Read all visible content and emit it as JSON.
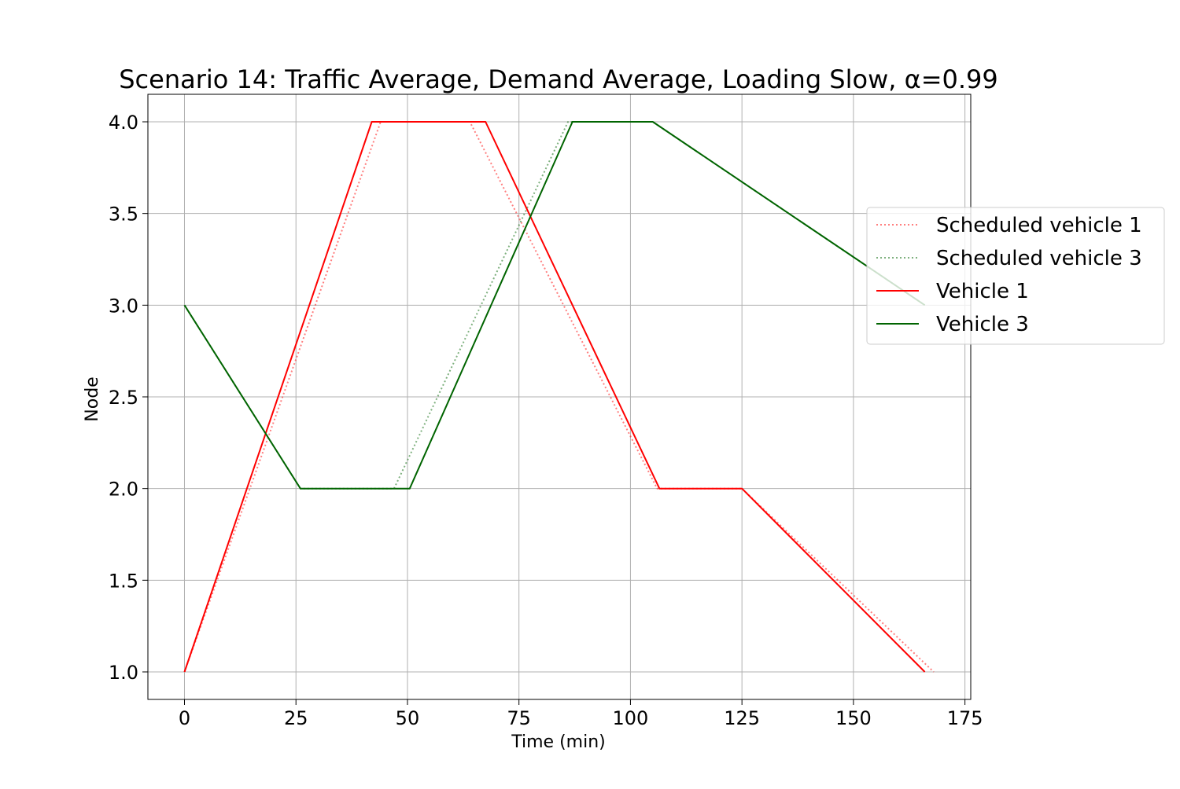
{
  "chart_data": {
    "type": "line",
    "title": "Scenario 14: Traffic Average, Demand Average, Loading Slow, α=0.99",
    "xlabel": "Time (min)",
    "ylabel": "Node",
    "xlim": [
      -8.2,
      176.3
    ],
    "ylim": [
      0.85,
      4.15
    ],
    "xticks": [
      0,
      25,
      50,
      75,
      100,
      125,
      150,
      175
    ],
    "yticks": [
      1.0,
      1.5,
      2.0,
      2.5,
      3.0,
      3.5,
      4.0
    ],
    "xtick_labels": [
      "0",
      "25",
      "50",
      "75",
      "100",
      "125",
      "150",
      "175"
    ],
    "ytick_labels": [
      "1.0",
      "1.5",
      "2.0",
      "2.5",
      "3.0",
      "3.5",
      "4.0"
    ],
    "grid": true,
    "legend_position": "right",
    "series": [
      {
        "name": "Scheduled vehicle 1",
        "color": "#ff0000",
        "style": "dotted",
        "alpha": 0.5,
        "x": [
          0,
          44,
          64,
          106,
          125,
          168
        ],
        "y": [
          1,
          4,
          4,
          2,
          2,
          1
        ]
      },
      {
        "name": "Scheduled vehicle 3",
        "color": "#006400",
        "style": "dotted",
        "alpha": 0.5,
        "x": [
          0,
          26,
          47,
          86,
          105,
          166
        ],
        "y": [
          3,
          2,
          2,
          4,
          4,
          3
        ]
      },
      {
        "name": "Vehicle 1",
        "color": "#ff0000",
        "style": "solid",
        "alpha": 1,
        "x": [
          0,
          42,
          67.5,
          106.5,
          125,
          166
        ],
        "y": [
          1,
          4,
          4,
          2,
          2,
          1
        ]
      },
      {
        "name": "Vehicle 3",
        "color": "#006400",
        "style": "solid",
        "alpha": 1,
        "x": [
          0,
          26,
          50.5,
          87,
          105,
          166
        ],
        "y": [
          3,
          2,
          2,
          4,
          4,
          3
        ]
      }
    ]
  }
}
